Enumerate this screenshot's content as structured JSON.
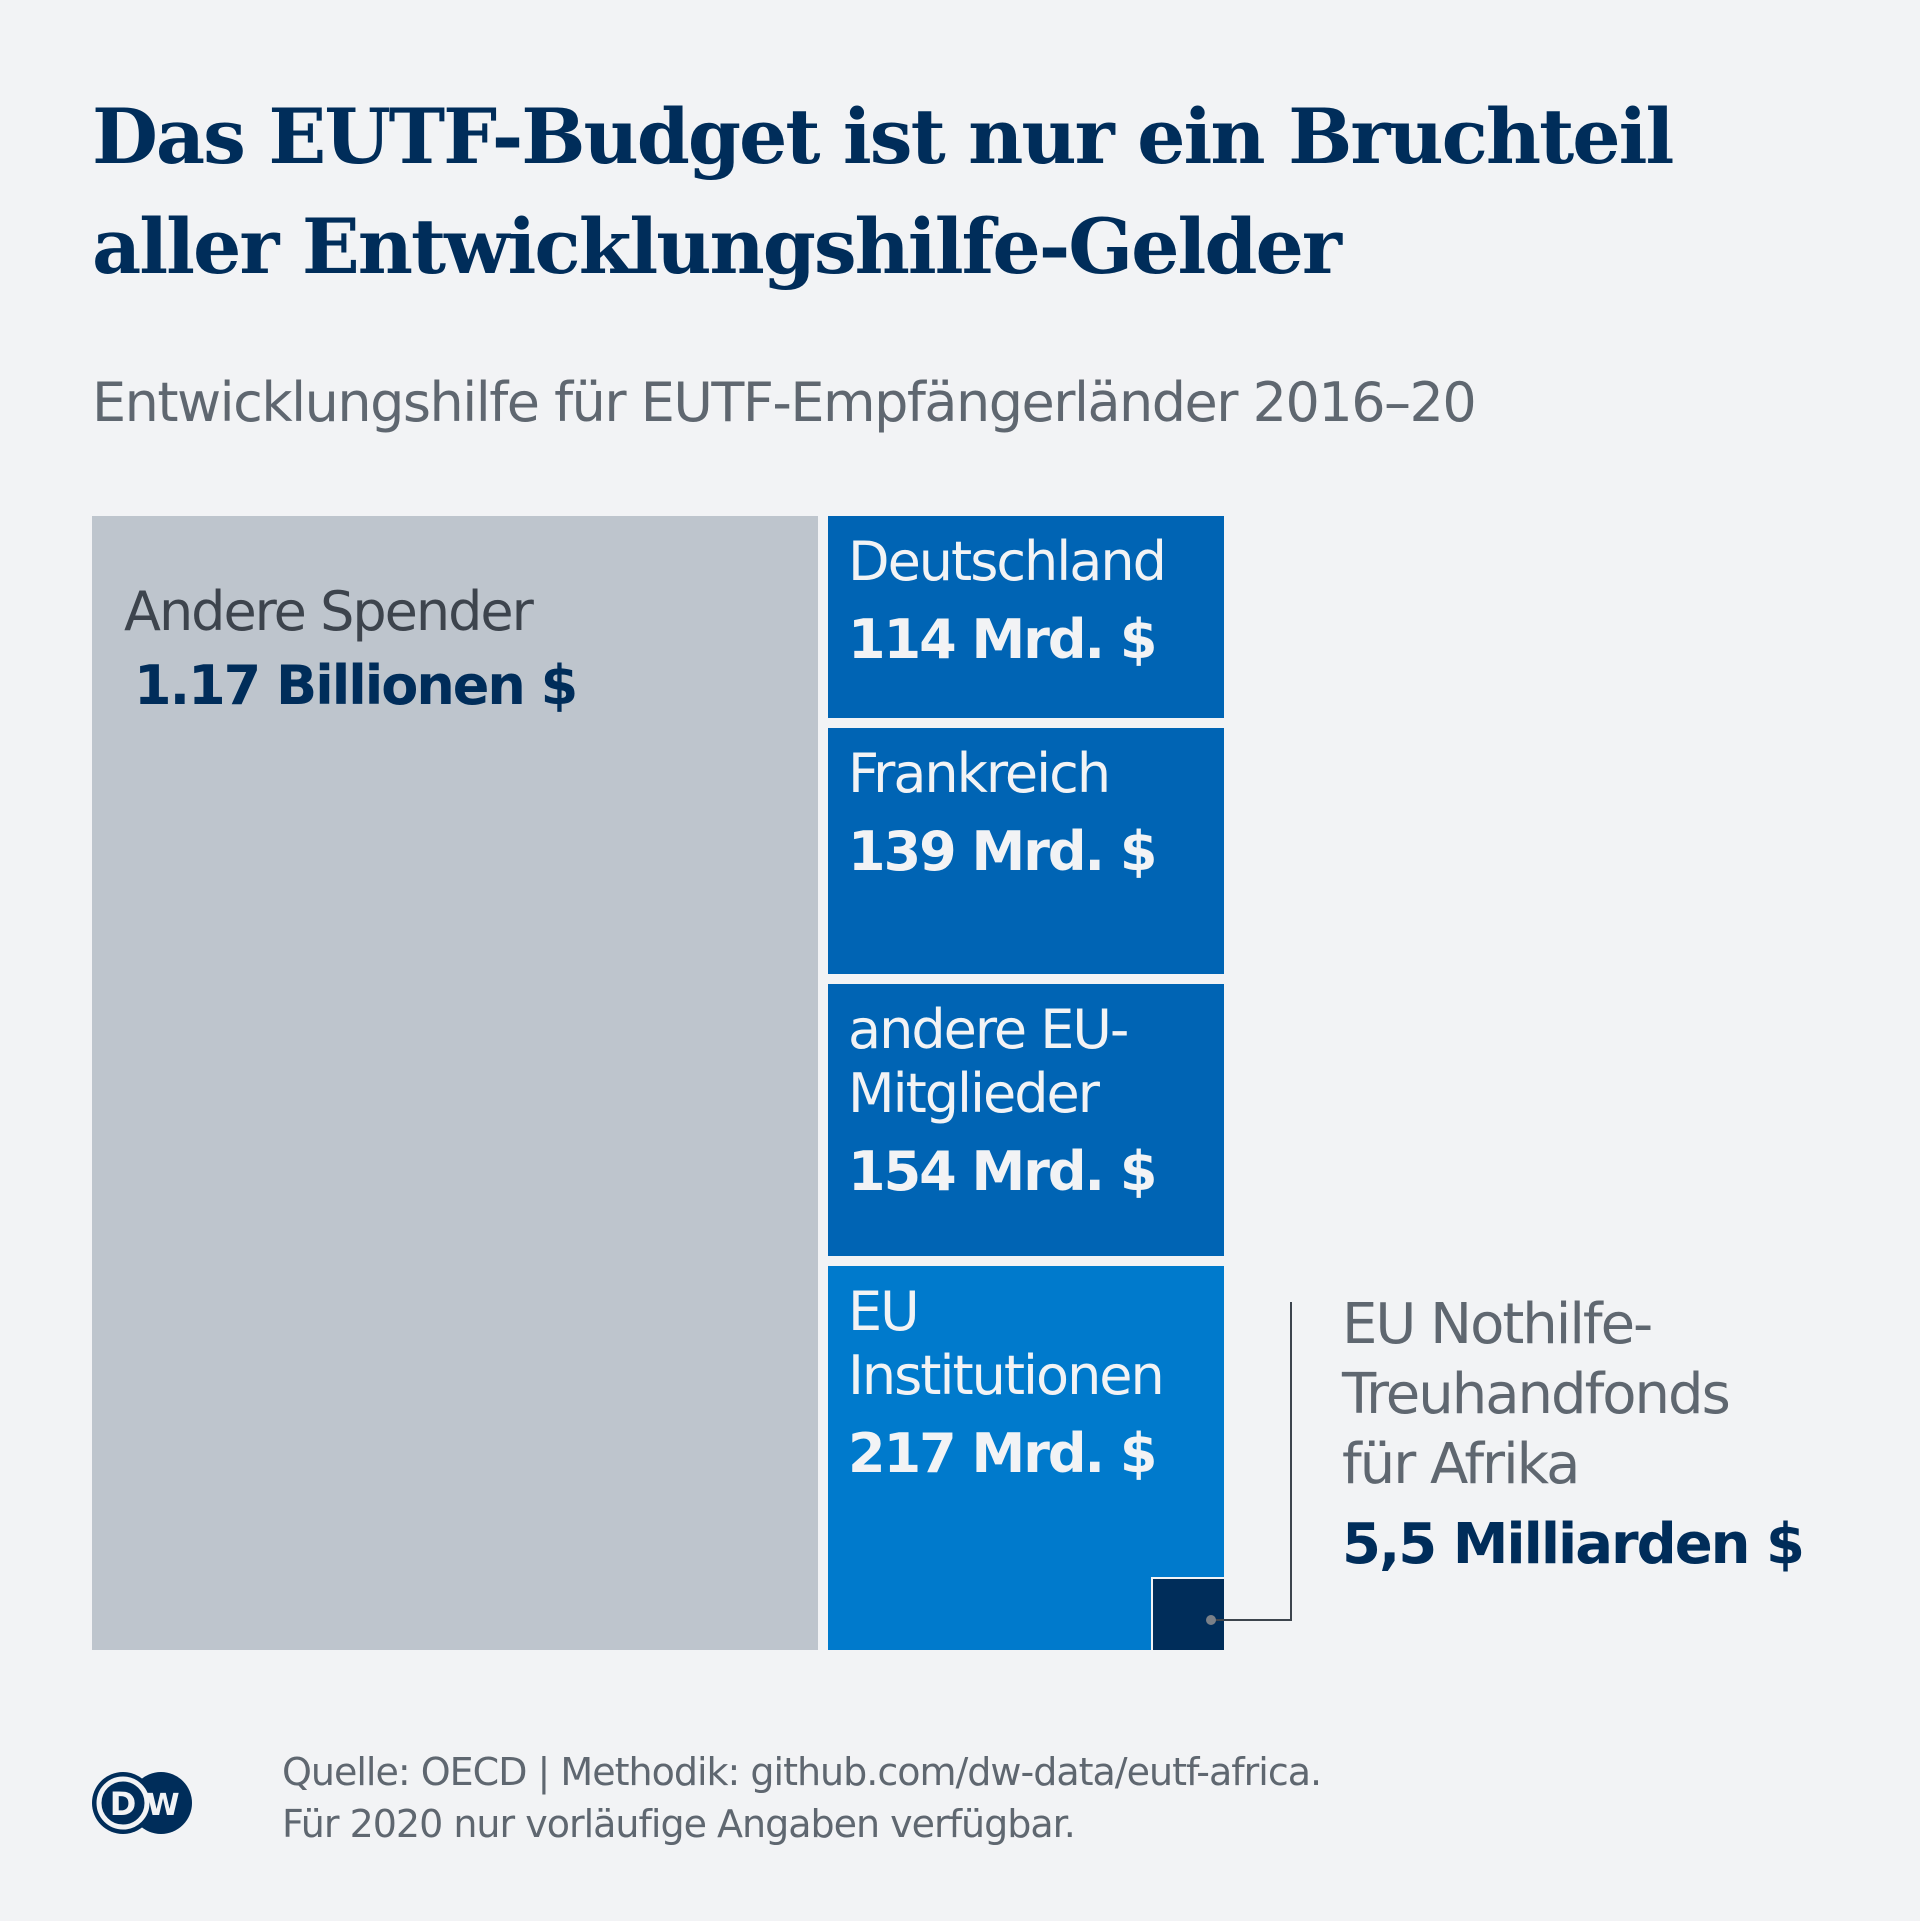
{
  "header": {
    "title_line1": "Das EUTF-Budget ist nur ein Bruchteil",
    "title_line2": "aller Entwicklungshilfe-Gelder",
    "subtitle": "Entwicklungshilfe für EUTF-Empfängerländer 2016–20"
  },
  "chart_data": {
    "type": "treemap",
    "title": "Das EUTF-Budget ist nur ein Bruchteil aller Entwicklungshilfe-Gelder",
    "subtitle": "Entwicklungshilfe für EUTF-Empfängerländer 2016–20",
    "unit": "Mrd. $",
    "items": [
      {
        "name": "Andere Spender",
        "label": "Andere Spender",
        "value": 1170,
        "value_label": "1.17 Billionen $",
        "color": "#bec5cd"
      },
      {
        "name": "Deutschland",
        "label": "Deutschland",
        "value": 114,
        "value_label": "114 Mrd. $",
        "color": "#0064b4"
      },
      {
        "name": "Frankreich",
        "label": "Frankreich",
        "value": 139,
        "value_label": "139 Mrd. $",
        "color": "#0064b4"
      },
      {
        "name": "andere EU-Mitglieder",
        "label": "andere EU-\nMitglieder",
        "value": 154,
        "value_label": "154 Mrd. $",
        "color": "#0064b4"
      },
      {
        "name": "EU Institutionen",
        "label": "EU\nInstitutionen",
        "value": 217,
        "value_label": "217 Mrd. $",
        "color": "#007acc"
      },
      {
        "name": "EU Nothilfe-Treuhandfonds für Afrika",
        "label": "EU Nothilfe-\nTreuhandfonds\nfür Afrika",
        "value": 5.5,
        "value_label": "5,5 Milliarden $",
        "color": "#002d5a",
        "nested_in": "EU Institutionen"
      }
    ]
  },
  "footer": {
    "source_line1": "Quelle: OECD | Methodik: github.com/dw-data/eutf-africa.",
    "source_line2": "Für 2020 nur vorläufige Angaben verfügbar.",
    "logo_text": "DW"
  },
  "colors": {
    "background": "#f2f3f5",
    "title": "#002d5a",
    "text_gray": "#5f6770",
    "connector": "#3d444d"
  }
}
